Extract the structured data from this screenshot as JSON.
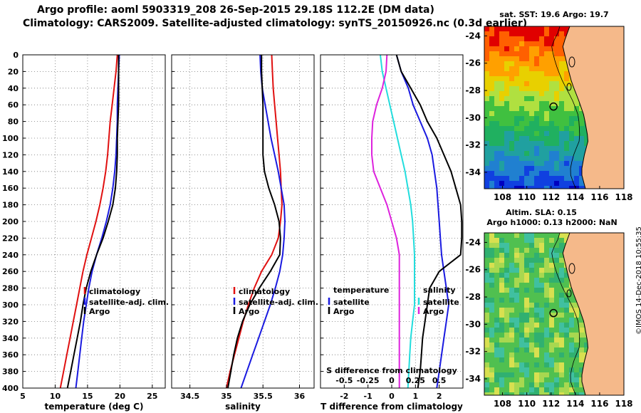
{
  "title": {
    "line1": "Argo profile: aoml 5903319_208 26-Sep-2015 29.18S 112.2E (DM data)",
    "line2": "Climatology: CARS2009. Satellite-adjusted climatology: synTS_20150926.nc (0.3d earlier)"
  },
  "stamp": "©IMOS 14-Dec-2018 10:55:35",
  "colors": {
    "climatology": "#e01010",
    "satellite": "#1a1ae0",
    "argo": "#000000",
    "s_satellite": "#22dddd",
    "s_argo": "#dd22dd",
    "land": "#f5b98a"
  },
  "chart_data": [
    {
      "type": "line",
      "name": "temperature",
      "xlabel": "temperature (deg C)",
      "ylabel": "",
      "xlim": [
        5,
        27
      ],
      "ylim": [
        400,
        0
      ],
      "xticks": [
        5,
        10,
        15,
        20,
        25
      ],
      "yticks": [
        0,
        20,
        40,
        60,
        80,
        100,
        120,
        140,
        160,
        180,
        200,
        220,
        240,
        260,
        280,
        300,
        320,
        340,
        360,
        380,
        400
      ],
      "grid": true,
      "legend": [
        "climatology",
        "satellite-adj. clim.",
        "Argo"
      ],
      "series": [
        {
          "name": "climatology",
          "depth": [
            0,
            20,
            40,
            60,
            80,
            100,
            120,
            140,
            160,
            180,
            200,
            220,
            240,
            260,
            280,
            300,
            320,
            340,
            360,
            380,
            400
          ],
          "values": [
            19.6,
            19.4,
            19.1,
            18.8,
            18.5,
            18.3,
            18.1,
            17.8,
            17.4,
            16.9,
            16.3,
            15.6,
            14.9,
            14.3,
            13.8,
            13.3,
            12.8,
            12.3,
            11.8,
            11.3,
            10.8
          ]
        },
        {
          "name": "satellite-adj. clim.",
          "depth": [
            0,
            20,
            40,
            60,
            80,
            100,
            120,
            140,
            160,
            180,
            200,
            220,
            240,
            260,
            280,
            300,
            320,
            340,
            360,
            380,
            400
          ],
          "values": [
            19.9,
            19.8,
            19.7,
            19.6,
            19.6,
            19.5,
            19.4,
            19.2,
            18.9,
            18.5,
            17.9,
            17.2,
            16.4,
            15.7,
            15.2,
            14.8,
            14.4,
            14.1,
            13.8,
            13.5,
            13.2
          ]
        },
        {
          "name": "Argo",
          "depth": [
            0,
            20,
            40,
            60,
            80,
            100,
            120,
            140,
            160,
            180,
            200,
            220,
            240,
            260,
            280,
            300,
            320,
            340,
            360,
            380,
            400
          ],
          "values": [
            19.8,
            19.8,
            19.8,
            19.8,
            19.7,
            19.6,
            19.6,
            19.5,
            19.3,
            18.9,
            18.2,
            17.4,
            16.4,
            15.5,
            14.8,
            14.3,
            13.9,
            13.4,
            12.9,
            12.4,
            11.9
          ]
        }
      ]
    },
    {
      "type": "line",
      "name": "salinity",
      "xlabel": "salinity",
      "xlim": [
        34.25,
        36.2
      ],
      "ylim": [
        400,
        0
      ],
      "xticks": [
        34.5,
        35,
        35.5,
        36
      ],
      "grid": true,
      "legend": [
        "climatology",
        "satellite-adj. clim.",
        "Argo"
      ],
      "series": [
        {
          "name": "climatology",
          "depth": [
            0,
            20,
            40,
            60,
            80,
            100,
            120,
            140,
            160,
            180,
            200,
            220,
            240,
            260,
            280,
            300,
            320,
            340,
            360,
            380,
            400
          ],
          "values": [
            35.62,
            35.63,
            35.64,
            35.66,
            35.68,
            35.7,
            35.72,
            35.74,
            35.75,
            35.76,
            35.74,
            35.71,
            35.62,
            35.48,
            35.38,
            35.3,
            35.23,
            35.17,
            35.11,
            35.05,
            35.0
          ]
        },
        {
          "name": "satellite-adj. clim.",
          "depth": [
            0,
            20,
            40,
            60,
            80,
            100,
            120,
            140,
            160,
            180,
            200,
            220,
            240,
            260,
            280,
            300,
            320,
            340,
            360,
            380,
            400
          ],
          "values": [
            35.46,
            35.47,
            35.49,
            35.53,
            35.57,
            35.61,
            35.66,
            35.71,
            35.75,
            35.79,
            35.8,
            35.79,
            35.77,
            35.73,
            35.67,
            35.6,
            35.52,
            35.44,
            35.36,
            35.28,
            35.2
          ]
        },
        {
          "name": "Argo",
          "depth": [
            0,
            20,
            40,
            60,
            80,
            100,
            120,
            140,
            160,
            180,
            200,
            220,
            240,
            260,
            280,
            300,
            320,
            340,
            360,
            380,
            400
          ],
          "values": [
            35.48,
            35.48,
            35.49,
            35.5,
            35.5,
            35.5,
            35.5,
            35.52,
            35.58,
            35.66,
            35.72,
            35.74,
            35.73,
            35.6,
            35.45,
            35.32,
            35.22,
            35.15,
            35.1,
            35.06,
            35.02
          ]
        }
      ]
    },
    {
      "type": "line",
      "name": "difference",
      "xlabel": "T difference from climatology",
      "x2label": "S difference from climatology",
      "xlim": [
        -3,
        3
      ],
      "x2lim": [
        -0.75,
        0.75
      ],
      "ylim": [
        400,
        0
      ],
      "xticks": [
        -2,
        -1,
        0,
        1,
        2
      ],
      "x2ticks": [
        "-0.5",
        "-0.25",
        "0",
        "0.25",
        "0.5"
      ],
      "x2tick_values": [
        -0.5,
        -0.25,
        0,
        0.25,
        0.5
      ],
      "grid": true,
      "legend_titles": [
        "temperature",
        "salinity"
      ],
      "legend_left": [
        "satellite",
        "Argo"
      ],
      "legend_right": [
        "satellite",
        "Argo"
      ],
      "series": [
        {
          "name": "T satellite",
          "depth": [
            0,
            20,
            40,
            60,
            80,
            100,
            120,
            140,
            160,
            180,
            200,
            220,
            240,
            260,
            280,
            300,
            320,
            340,
            360,
            380,
            400
          ],
          "values": [
            0.2,
            0.4,
            0.7,
            0.9,
            1.2,
            1.5,
            1.7,
            1.8,
            1.9,
            1.95,
            2.0,
            2.05,
            2.1,
            2.2,
            2.3,
            2.4,
            2.3,
            2.2,
            2.1,
            2.0,
            1.9
          ]
        },
        {
          "name": "T Argo",
          "depth": [
            0,
            20,
            40,
            60,
            80,
            100,
            120,
            140,
            160,
            180,
            200,
            220,
            240,
            260,
            280,
            300,
            320,
            340,
            360,
            380,
            400
          ],
          "values": [
            0.2,
            0.4,
            0.8,
            1.2,
            1.5,
            1.9,
            2.2,
            2.5,
            2.7,
            2.9,
            2.95,
            2.95,
            2.9,
            2.0,
            1.6,
            1.5,
            1.4,
            1.3,
            1.25,
            1.2,
            1.1
          ]
        },
        {
          "name": "S satellite",
          "depth": [
            0,
            20,
            40,
            60,
            80,
            100,
            120,
            140,
            160,
            180,
            200,
            220,
            240,
            260,
            280,
            300,
            320,
            340,
            360,
            380,
            400
          ],
          "values": [
            -0.12,
            -0.1,
            -0.06,
            -0.02,
            0.02,
            0.06,
            0.1,
            0.14,
            0.17,
            0.2,
            0.22,
            0.23,
            0.24,
            0.24,
            0.24,
            0.24,
            0.22,
            0.2,
            0.19,
            0.18,
            0.17
          ]
        },
        {
          "name": "S Argo",
          "depth": [
            0,
            20,
            40,
            60,
            80,
            100,
            120,
            140,
            160,
            180,
            200,
            220,
            240,
            260,
            280,
            300,
            320,
            340,
            360,
            380,
            400
          ],
          "values": [
            -0.05,
            -0.06,
            -0.1,
            -0.16,
            -0.2,
            -0.21,
            -0.21,
            -0.19,
            -0.12,
            -0.05,
            0.0,
            0.05,
            0.08,
            0.08,
            0.08,
            0.08,
            0.08,
            0.08,
            0.08,
            0.08,
            0.08
          ]
        }
      ]
    },
    {
      "type": "heatmap",
      "name": "sst-map",
      "title": "sat. SST: 19.6 Argo: 19.7",
      "xlim": [
        106.5,
        118
      ],
      "ylim": [
        -35.2,
        -23.3
      ],
      "xticks": [
        108,
        110,
        112,
        114,
        116,
        118
      ],
      "yticks": [
        -24,
        -26,
        -28,
        -30,
        -32,
        -34
      ],
      "float": [
        112.2,
        -29.18
      ]
    },
    {
      "type": "heatmap",
      "name": "sla-map",
      "title": "Altim. SLA: 0.15",
      "subtitle": "Argo h1000: 0.13 h2000: NaN",
      "xlim": [
        106.5,
        118
      ],
      "ylim": [
        -35.2,
        -23.3
      ],
      "xticks": [
        108,
        110,
        112,
        114,
        116,
        118
      ],
      "yticks": [
        -24,
        -26,
        -28,
        -30,
        -32,
        -34
      ],
      "float": [
        112.2,
        -29.18
      ]
    }
  ]
}
